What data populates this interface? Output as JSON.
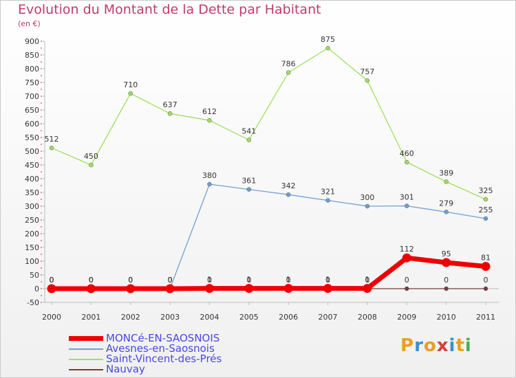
{
  "header": {
    "title": "Evolution du Montant de la Dette par Habitant",
    "unit": "(en €)"
  },
  "branding": {
    "logo_text": "Proxiti",
    "logo_colors": [
      "#e8a020",
      "#3a8fd0",
      "#e8a020",
      "#d04040",
      "#3a8fd0",
      "#e8a020",
      "#4caf50"
    ]
  },
  "chart_data": {
    "type": "line",
    "title": "Evolution du Montant de la Dette par Habitant",
    "ylabel": "(en €)",
    "ylim": [
      -50,
      900
    ],
    "yticks": [
      -50,
      0,
      50,
      100,
      150,
      200,
      250,
      300,
      350,
      400,
      450,
      500,
      550,
      600,
      650,
      700,
      750,
      800,
      850,
      900
    ],
    "categories": [
      "2000",
      "2001",
      "2002",
      "2003",
      "2004",
      "2005",
      "2006",
      "2007",
      "2008",
      "2009",
      "2010",
      "2011"
    ],
    "grid": false,
    "legend_position": "bottom-left",
    "series": [
      {
        "name": "MONCé-EN-SAOSNOIS",
        "color": "#ee0000",
        "values": [
          0,
          0,
          0,
          0,
          1,
          1,
          1,
          1,
          1,
          112,
          95,
          81
        ],
        "emphasis": true
      },
      {
        "name": "Avesnes-en-Saosnois",
        "color": "#6ea0d0",
        "values": [
          0,
          0,
          0,
          0,
          380,
          361,
          342,
          321,
          300,
          301,
          279,
          255
        ]
      },
      {
        "name": "Saint-Vincent-des-Prés",
        "color": "#9ee060",
        "values": [
          512,
          450,
          710,
          637,
          612,
          541,
          786,
          875,
          757,
          460,
          389,
          325
        ]
      },
      {
        "name": "Nauvay",
        "color": "#7a3a3a",
        "values": [
          0,
          0,
          0,
          0,
          0,
          0,
          0,
          0,
          0,
          0,
          0,
          0
        ]
      }
    ]
  }
}
